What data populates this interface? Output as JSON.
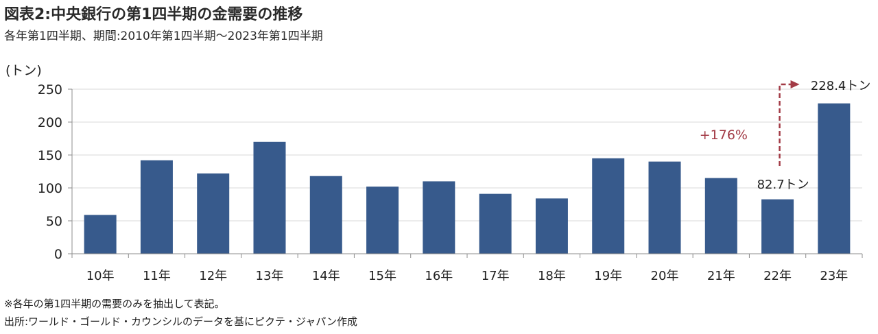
{
  "title": "図表2:中央銀行の第1四半期の金需要の推移",
  "subtitle": "各年第1四半期、期間:2010年第1四半期～2023年第1四半期",
  "note": "※各年の第1四半期の需要のみを抽出して表記。",
  "source": "出所:ワールド・ゴールド・カウンシルのデータを基にピクテ・ジャパン作成",
  "colors": {
    "bar": "#375a8c",
    "accent": "#a23a45",
    "grid": "#d9d9d9",
    "axis": "#8c8c8c"
  },
  "chart_data": {
    "type": "bar",
    "unit_label": "(トン)",
    "categories": [
      "10年",
      "11年",
      "12年",
      "13年",
      "14年",
      "15年",
      "16年",
      "17年",
      "18年",
      "19年",
      "20年",
      "21年",
      "22年",
      "23年"
    ],
    "values": [
      59,
      142,
      122,
      170,
      118,
      102,
      110,
      91,
      84,
      145,
      140,
      115,
      82.7,
      228.4
    ],
    "ylim": [
      0,
      250
    ],
    "yticks": [
      "0",
      "50",
      "100",
      "150",
      "200",
      "250"
    ],
    "grid": true,
    "annotations": {
      "label_22": "82.7トン",
      "label_23": "228.4トン",
      "change": "+176%"
    }
  }
}
